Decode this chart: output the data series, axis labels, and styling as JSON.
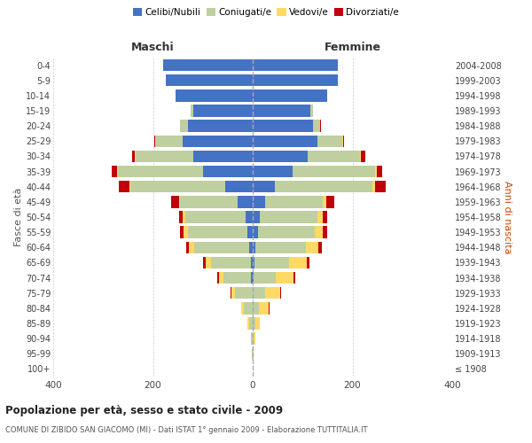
{
  "age_groups": [
    "100+",
    "95-99",
    "90-94",
    "85-89",
    "80-84",
    "75-79",
    "70-74",
    "65-69",
    "60-64",
    "55-59",
    "50-54",
    "45-49",
    "40-44",
    "35-39",
    "30-34",
    "25-29",
    "20-24",
    "15-19",
    "10-14",
    "5-9",
    "0-4"
  ],
  "birth_years": [
    "≤ 1908",
    "1909-1913",
    "1914-1918",
    "1919-1923",
    "1924-1928",
    "1929-1933",
    "1934-1938",
    "1939-1943",
    "1944-1948",
    "1949-1953",
    "1954-1958",
    "1959-1963",
    "1964-1968",
    "1969-1973",
    "1974-1978",
    "1979-1983",
    "1984-1988",
    "1989-1993",
    "1994-1998",
    "1999-2003",
    "2004-2008"
  ],
  "maschi": {
    "celibi": [
      0,
      0,
      0,
      0,
      0,
      0,
      3,
      4,
      8,
      10,
      15,
      30,
      55,
      100,
      120,
      140,
      130,
      120,
      155,
      175,
      180
    ],
    "coniugati": [
      0,
      1,
      3,
      8,
      18,
      35,
      55,
      80,
      110,
      120,
      120,
      115,
      190,
      170,
      115,
      55,
      15,
      5,
      0,
      0,
      0
    ],
    "vedovi": [
      0,
      0,
      1,
      2,
      5,
      8,
      10,
      10,
      10,
      8,
      5,
      3,
      3,
      2,
      1,
      1,
      0,
      0,
      0,
      0,
      0
    ],
    "divorziati": [
      0,
      0,
      0,
      0,
      1,
      1,
      3,
      5,
      5,
      8,
      8,
      15,
      20,
      10,
      5,
      2,
      1,
      0,
      0,
      0,
      0
    ]
  },
  "femmine": {
    "nubili": [
      0,
      0,
      0,
      0,
      0,
      0,
      2,
      3,
      6,
      10,
      15,
      25,
      45,
      80,
      110,
      130,
      120,
      115,
      150,
      170,
      170
    ],
    "coniugate": [
      0,
      1,
      2,
      5,
      12,
      25,
      45,
      70,
      100,
      115,
      115,
      115,
      195,
      165,
      105,
      50,
      15,
      5,
      0,
      0,
      0
    ],
    "vedove": [
      0,
      1,
      3,
      10,
      20,
      30,
      35,
      35,
      25,
      15,
      10,
      8,
      5,
      3,
      2,
      1,
      0,
      0,
      0,
      0,
      0
    ],
    "divorziate": [
      0,
      0,
      0,
      0,
      1,
      2,
      4,
      6,
      8,
      10,
      10,
      15,
      22,
      12,
      8,
      2,
      1,
      0,
      0,
      0,
      0
    ]
  },
  "colors": {
    "celibi": "#4472C4",
    "coniugati": "#BFCFA0",
    "vedovi": "#FFD966",
    "divorziati": "#C0000C"
  },
  "xlim": 400,
  "title": "Popolazione per età, sesso e stato civile - 2009",
  "subtitle": "COMUNE DI ZIBIDO SAN GIACOMO (MI) - Dati ISTAT 1° gennaio 2009 - Elaborazione TUTTITALIA.IT",
  "ylabel_left": "Fasce di età",
  "ylabel_right": "Anni di nascita",
  "header_maschi": "Maschi",
  "header_femmine": "Femmine",
  "legend_labels": [
    "Celibi/Nubili",
    "Coniugati/e",
    "Vedovi/e",
    "Divorziati/e"
  ],
  "background_color": "#FFFFFF",
  "grid_color": "#CCCCCC"
}
